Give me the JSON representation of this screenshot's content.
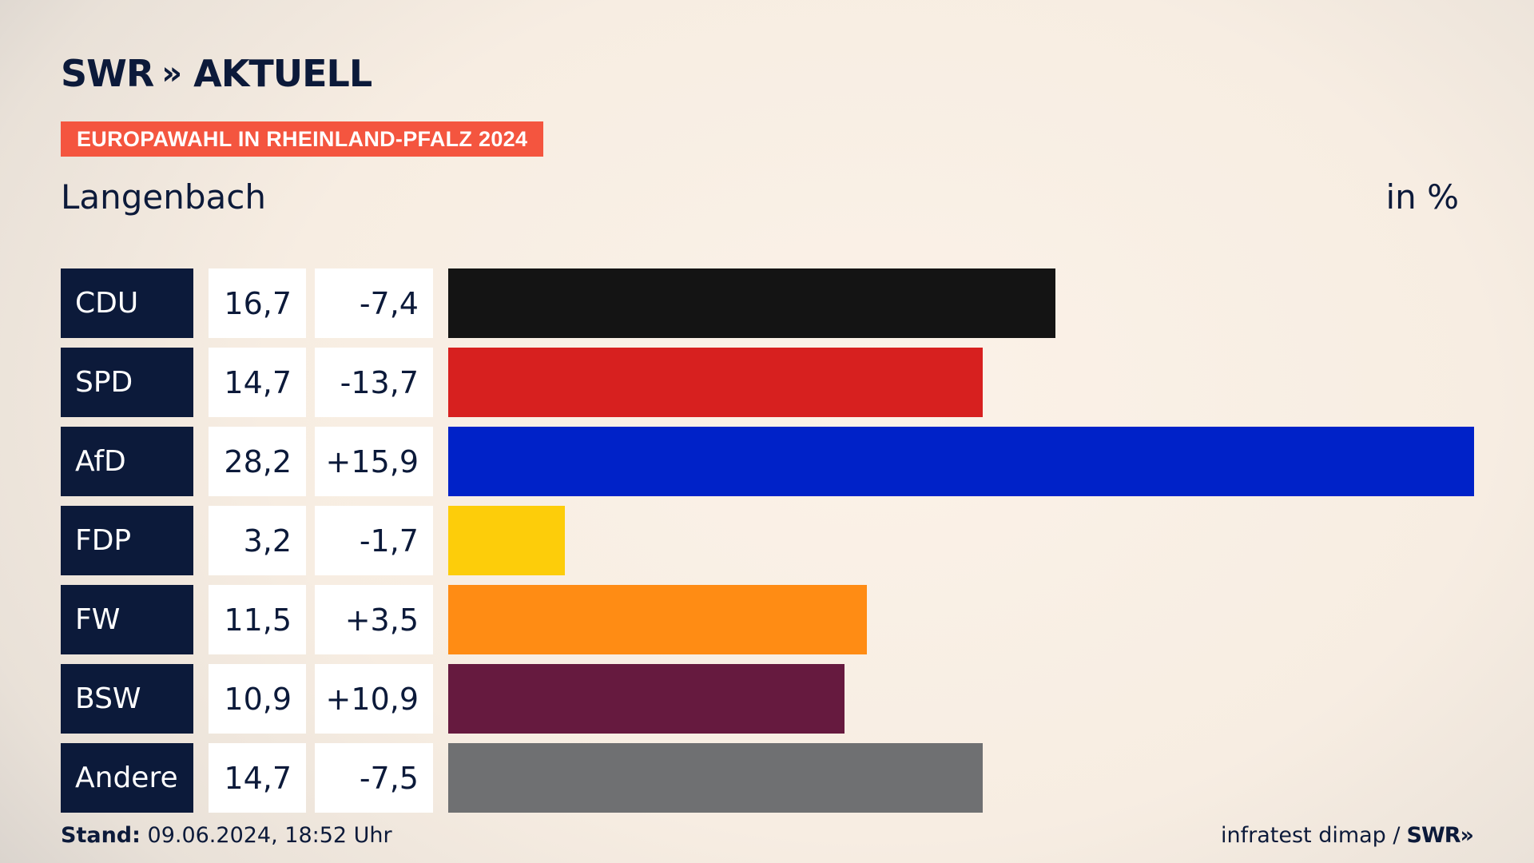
{
  "header": {
    "logo_text": "SWR",
    "logo_arrows": "»",
    "logo_suffix": "AKTUELL",
    "banner": "EUROPAWAHL IN RHEINLAND-PFALZ 2024",
    "location": "Langenbach",
    "unit": "in %"
  },
  "chart_data": {
    "type": "bar",
    "orientation": "horizontal",
    "categories": [
      "CDU",
      "SPD",
      "AfD",
      "FDP",
      "FW",
      "BSW",
      "Andere"
    ],
    "values": [
      16.7,
      14.7,
      28.2,
      3.2,
      11.5,
      10.9,
      14.7
    ],
    "value_labels": [
      "16,7",
      "14,7",
      "28,2",
      "3,2",
      "11,5",
      "10,9",
      "14,7"
    ],
    "diff_labels": [
      "-7,4",
      "-13,7",
      "+15,9",
      "-1,7",
      "+3,5",
      "+10,9",
      "-7,5"
    ],
    "colors": [
      "#141414",
      "#d7201f",
      "#0022c8",
      "#fdcd0a",
      "#ff8c14",
      "#661a3f",
      "#6f7072"
    ],
    "xlim": [
      0,
      28.2
    ],
    "grid": false
  },
  "footer": {
    "stand_label": "Stand:",
    "stand_value": "09.06.2024, 18:52 Uhr",
    "source": "infratest dimap /",
    "source_logo": "SWR",
    "source_arrows": "»"
  }
}
